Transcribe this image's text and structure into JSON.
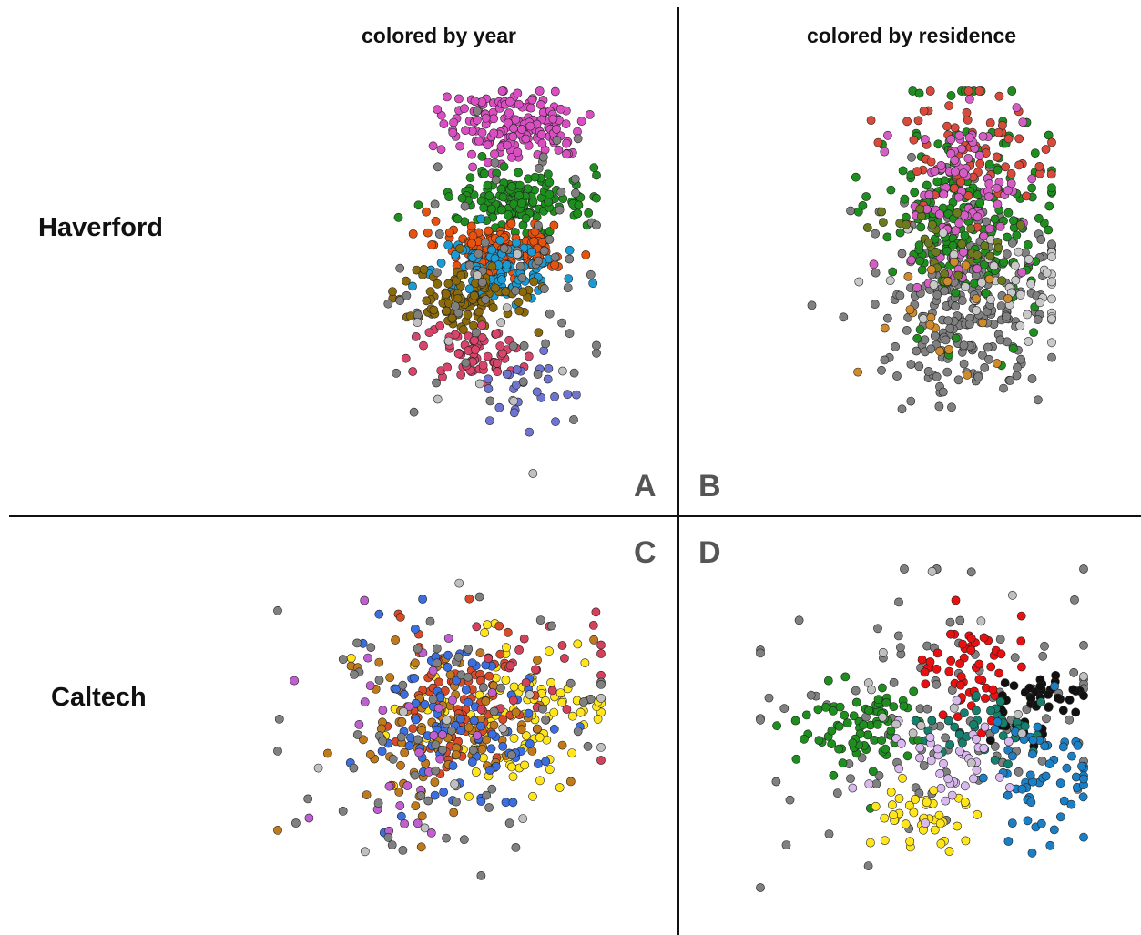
{
  "headers": {
    "left": "colored by year",
    "right": "colored by residence"
  },
  "rows": {
    "top": "Haverford",
    "bottom": "Caltech"
  },
  "panels": {
    "a": "A",
    "b": "B",
    "c": "C",
    "d": "D"
  },
  "chart_data": [
    {
      "type": "scatter",
      "panel": "A",
      "coloring": "year",
      "series": [
        {
          "color": "#d94fc2",
          "cx": 0.4,
          "cy": -0.82,
          "sx": 0.26,
          "sy": 0.1,
          "n": 170
        },
        {
          "color": "#1e8e1e",
          "cx": 0.42,
          "cy": -0.42,
          "sx": 0.25,
          "sy": 0.07,
          "n": 150
        },
        {
          "color": "#e8520f",
          "cx": 0.32,
          "cy": -0.19,
          "sx": 0.25,
          "sy": 0.07,
          "n": 140
        },
        {
          "color": "#1a9bd3",
          "cx": 0.28,
          "cy": -0.05,
          "sx": 0.22,
          "sy": 0.07,
          "n": 110
        },
        {
          "color": "#8b6a0c",
          "cx": 0.05,
          "cy": 0.08,
          "sx": 0.26,
          "sy": 0.09,
          "n": 110
        },
        {
          "color": "#d8456b",
          "cx": 0.1,
          "cy": 0.38,
          "sx": 0.17,
          "sy": 0.08,
          "n": 70
        },
        {
          "color": "#6f74d0",
          "cx": 0.38,
          "cy": 0.55,
          "sx": 0.2,
          "sy": 0.1,
          "n": 25
        },
        {
          "color": "#808080",
          "cx": 0.3,
          "cy": -0.05,
          "sx": 0.38,
          "sy": 0.38,
          "n": 70
        },
        {
          "color": "#c0c0c0",
          "cx": 0.2,
          "cy": 0.2,
          "sx": 0.4,
          "sy": 0.4,
          "n": 12
        }
      ]
    },
    {
      "type": "scatter",
      "panel": "B",
      "coloring": "residence",
      "series": [
        {
          "color": "#808080",
          "cx": 0.4,
          "cy": 0.08,
          "sx": 0.3,
          "sy": 0.26,
          "n": 260
        },
        {
          "color": "#1e8e1e",
          "cx": 0.38,
          "cy": -0.38,
          "sx": 0.3,
          "sy": 0.28,
          "n": 210
        },
        {
          "color": "#d94a3b",
          "cx": 0.38,
          "cy": -0.7,
          "sx": 0.28,
          "sy": 0.16,
          "n": 70
        },
        {
          "color": "#d45ec4",
          "cx": 0.38,
          "cy": -0.4,
          "sx": 0.22,
          "sy": 0.24,
          "n": 90
        },
        {
          "color": "#c9c9c9",
          "cx": 0.55,
          "cy": 0.0,
          "sx": 0.4,
          "sy": 0.15,
          "n": 45
        },
        {
          "color": "#6b7a1c",
          "cx": 0.2,
          "cy": -0.25,
          "sx": 0.22,
          "sy": 0.12,
          "n": 30
        },
        {
          "color": "#cf8a2c",
          "cx": 0.25,
          "cy": 0.15,
          "sx": 0.25,
          "sy": 0.2,
          "n": 20
        }
      ]
    },
    {
      "type": "scatter",
      "panel": "C",
      "coloring": "year",
      "series": [
        {
          "color": "#ffe51a",
          "cx": 0.45,
          "cy": -0.08,
          "sx": 0.3,
          "sy": 0.24,
          "n": 110
        },
        {
          "color": "#d94a28",
          "cx": 0.12,
          "cy": -0.15,
          "sx": 0.22,
          "sy": 0.26,
          "n": 90
        },
        {
          "color": "#c07a1c",
          "cx": 0.05,
          "cy": 0.05,
          "sx": 0.32,
          "sy": 0.28,
          "n": 100
        },
        {
          "color": "#3b6fe0",
          "cx": 0.08,
          "cy": 0.0,
          "sx": 0.3,
          "sy": 0.3,
          "n": 90
        },
        {
          "color": "#c05fd0",
          "cx": -0.2,
          "cy": 0.1,
          "sx": 0.25,
          "sy": 0.3,
          "n": 30
        },
        {
          "color": "#d4415a",
          "cx": 0.7,
          "cy": -0.4,
          "sx": 0.25,
          "sy": 0.22,
          "n": 25
        },
        {
          "color": "#808080",
          "cx": 0.0,
          "cy": 0.0,
          "sx": 0.5,
          "sy": 0.45,
          "n": 70
        },
        {
          "color": "#c0c0c0",
          "cx": 0.0,
          "cy": 0.1,
          "sx": 0.5,
          "sy": 0.45,
          "n": 12
        }
      ]
    },
    {
      "type": "scatter",
      "panel": "D",
      "coloring": "residence",
      "series": [
        {
          "color": "#808080",
          "cx": 0.0,
          "cy": -0.1,
          "sx": 0.55,
          "sy": 0.42,
          "n": 110
        },
        {
          "color": "#1e8e1e",
          "cx": -0.4,
          "cy": 0.0,
          "sx": 0.22,
          "sy": 0.14,
          "n": 80
        },
        {
          "color": "#e81010",
          "cx": 0.28,
          "cy": -0.4,
          "sx": 0.14,
          "sy": 0.18,
          "n": 55
        },
        {
          "color": "#111111",
          "cx": 0.72,
          "cy": -0.15,
          "sx": 0.15,
          "sy": 0.12,
          "n": 45
        },
        {
          "color": "#16806e",
          "cx": 0.4,
          "cy": 0.0,
          "sx": 0.2,
          "sy": 0.1,
          "n": 40
        },
        {
          "color": "#1a7fc4",
          "cx": 0.8,
          "cy": 0.35,
          "sx": 0.22,
          "sy": 0.2,
          "n": 60
        },
        {
          "color": "#ffe51a",
          "cx": 0.0,
          "cy": 0.55,
          "sx": 0.16,
          "sy": 0.12,
          "n": 45
        },
        {
          "color": "#d9b8ee",
          "cx": 0.1,
          "cy": 0.25,
          "sx": 0.18,
          "sy": 0.14,
          "n": 40
        },
        {
          "color": "#c0c0c0",
          "cx": 0.15,
          "cy": -0.3,
          "sx": 0.4,
          "sy": 0.35,
          "n": 15
        }
      ]
    }
  ]
}
